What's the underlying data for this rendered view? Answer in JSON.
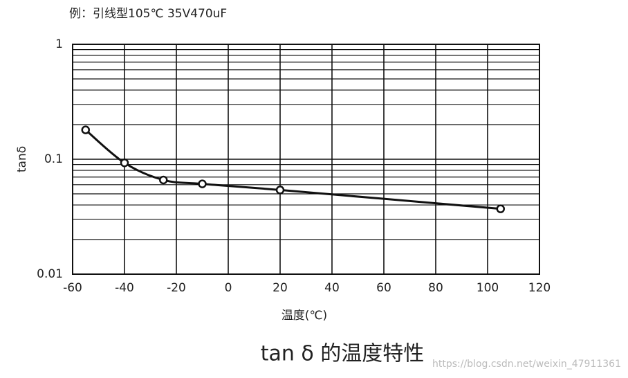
{
  "chart_data": {
    "type": "line",
    "title": "例：引线型105℃ 35V470uF",
    "caption": "tan δ 的温度特性",
    "watermark": "https://blog.csdn.net/weixin_47911361",
    "x_label": "温度(℃)",
    "y_label": "tanδ",
    "x": [
      -55,
      -40,
      -25,
      -10,
      20,
      105
    ],
    "series": [
      {
        "name": "35V470uF",
        "color": "#111111",
        "values": [
          0.18,
          0.093,
          0.066,
          0.061,
          0.054,
          0.037
        ]
      }
    ],
    "xlim": [
      -60,
      120
    ],
    "xticks": [
      -60,
      -40,
      -20,
      0,
      20,
      40,
      60,
      80,
      100,
      120
    ],
    "ylim": [
      0.01,
      1
    ],
    "yticks": [
      0.01,
      0.1,
      1
    ],
    "log_y": true,
    "grid": true,
    "minor_grid": true
  }
}
